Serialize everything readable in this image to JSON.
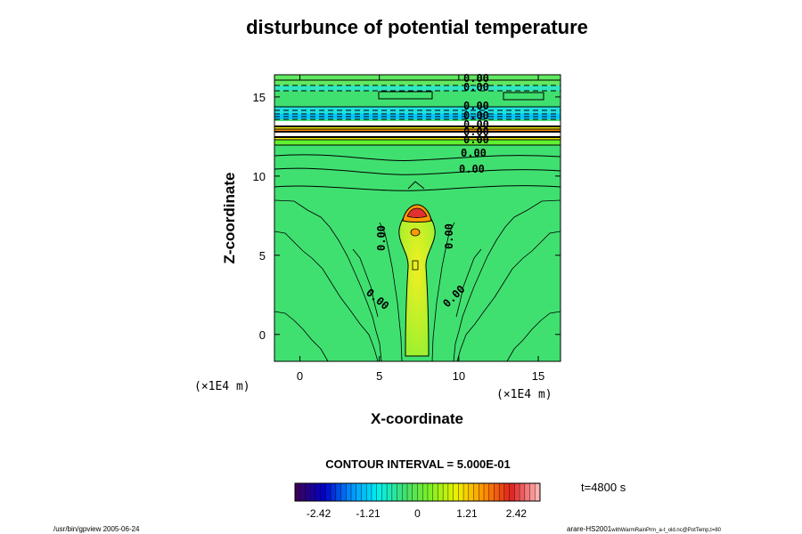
{
  "chart_data": {
    "type": "heatmap",
    "title": "disturbunce of potential temperature",
    "xlabel": "X-coordinate",
    "ylabel": "Z-coordinate",
    "x_unit": "(×1E4 m)",
    "z_unit": "(×1E4 m)",
    "xlim": [
      -1.6,
      16.4
    ],
    "zlim": [
      -1.7,
      16.4
    ],
    "x_ticks": [
      "0",
      "5",
      "10",
      "15"
    ],
    "z_ticks": [
      "0",
      "5",
      "10",
      "15"
    ],
    "contour_interval_text": "CONTOUR INTERVAL = 5.000E-01",
    "contour_labels": [
      "0.00"
    ],
    "colorbar": {
      "ticks": [
        "-2.42",
        "-1.21",
        "0",
        "1.21",
        "2.42"
      ],
      "range": [
        -3.0,
        3.0
      ],
      "colors": [
        "#3a0060",
        "#0000c8",
        "#0090ff",
        "#00f0f0",
        "#40e070",
        "#80f020",
        "#f0f000",
        "#ff9000",
        "#e02020",
        "#ffb0b0"
      ]
    },
    "time_text": "t=4800 s",
    "footer_left": "/usr/bin/gpview 2005-06-24",
    "footer_right_main": "arare-HS2001",
    "footer_right_sub": "withWarmRainPrm_a-t_old.nc@PotTemp,t=80",
    "background_color": "#40e070"
  }
}
